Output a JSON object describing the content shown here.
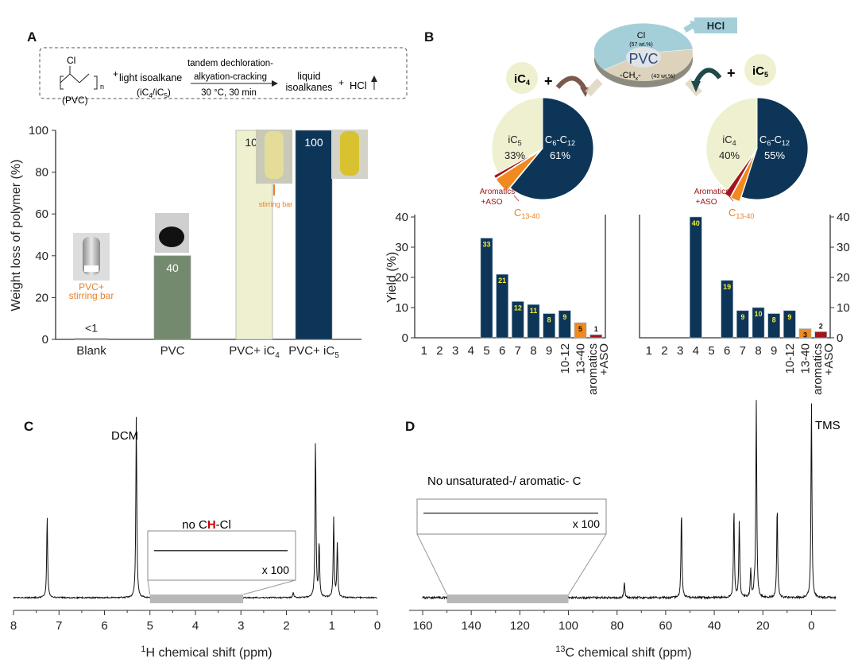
{
  "panels": {
    "a": "A",
    "b": "B",
    "c": "C",
    "d": "D"
  },
  "colors": {
    "navy": "#0d3557",
    "cream": "#eef0cf",
    "green": "#748a6e",
    "orange": "#f08a1e",
    "red": "#a3151b",
    "lightblue": "#a5cfd8",
    "beige": "#ddd3bd",
    "bar_label_yellow": "#f2ea3a"
  },
  "scheme": {
    "cl": "Cl",
    "n": "n",
    "pvc": "(PVC)",
    "plus": "+",
    "reactant": "light isoalkane",
    "reactant_sub": [
      "(iC",
      "4",
      "/iC",
      "5",
      ")"
    ],
    "arrow_top1": "tandem dechloration-",
    "arrow_top2": "alkyation-cracking",
    "arrow_bottom": "30 °C, 30 min",
    "product1": "liquid",
    "product2": "isoalkanes",
    "hcl": "HCl"
  },
  "panel_a_annotations": {
    "blank_vial": [
      "PVC+",
      "stirring bar"
    ],
    "ic4_vial": "stirring bar"
  },
  "panel_b_scheme": {
    "cl": "Cl",
    "cl_wt": "(57 wt.%)",
    "pvc": "PVC",
    "chx": "-CH",
    "chx_sub": "x",
    "chx_end": "-",
    "chx_wt": "(43 wt.%)",
    "hcl": "HCl",
    "ic4": [
      "iC",
      "4"
    ],
    "ic5": [
      "iC",
      "5"
    ],
    "plus": "+"
  },
  "chart_data": [
    {
      "type": "bar",
      "id": "weight-loss",
      "ylabel": "Weight loss of polymer (%)",
      "ylim": [
        0,
        100
      ],
      "yticks": [
        "0",
        "20",
        "40",
        "60",
        "80",
        "100"
      ],
      "categories": [
        [
          "Blank",
          ""
        ],
        [
          "PVC",
          ""
        ],
        [
          "PVC+ iC",
          "4"
        ],
        [
          "PVC+ iC",
          "5"
        ]
      ],
      "values": [
        0.5,
        40,
        100,
        100
      ],
      "value_labels": [
        "<1",
        "40",
        "100",
        "100"
      ],
      "colors": [
        "#9aa58f",
        "#748a6e",
        "#eef0cf",
        "#0d3557"
      ]
    },
    {
      "type": "bar",
      "id": "yield-ic4",
      "ylabel": "Yield (%)",
      "ylim": [
        0,
        40
      ],
      "yticks": [
        "0",
        "10",
        "20",
        "30",
        "40"
      ],
      "categories": [
        "1",
        "2",
        "3",
        "4",
        "5",
        "6",
        "7",
        "8",
        "9",
        "10-12",
        "13-40",
        "aromatics|+ASO"
      ],
      "values": [
        0,
        0,
        0,
        0,
        33,
        21,
        12,
        11,
        8,
        9,
        5,
        1
      ],
      "value_labels": [
        "",
        "",
        "",
        "",
        "33",
        "21",
        "12",
        "11",
        "8",
        "9",
        "5",
        "1"
      ]
    },
    {
      "type": "bar",
      "id": "yield-ic5",
      "ylabel": "Yield (%)",
      "ylim": [
        0,
        40
      ],
      "yticks": [
        "0",
        "10",
        "20",
        "30",
        "40"
      ],
      "categories": [
        "1",
        "2",
        "3",
        "4",
        "5",
        "6",
        "7",
        "8",
        "9",
        "10-12",
        "13-40",
        "aromatics|+ASO"
      ],
      "values": [
        0,
        0,
        0,
        40,
        0,
        19,
        9,
        10,
        8,
        9,
        3,
        2
      ],
      "value_labels": [
        "",
        "",
        "",
        "40",
        "",
        "19",
        "9",
        "10",
        "8",
        "9",
        "3",
        "2"
      ]
    },
    {
      "type": "pie",
      "id": "pie-ic4",
      "slices": [
        {
          "label": "C6-C12",
          "value": 61,
          "pct": "61%"
        },
        {
          "label": "C13-40",
          "value": 5,
          "pct": ""
        },
        {
          "label": "Aromatics +ASO",
          "value": 1,
          "pct": ""
        },
        {
          "label": "iC5",
          "value": 33,
          "pct": "33%"
        }
      ]
    },
    {
      "type": "pie",
      "id": "pie-ic5",
      "slices": [
        {
          "label": "C6-C12",
          "value": 55,
          "pct": "55%"
        },
        {
          "label": "C13-40",
          "value": 3,
          "pct": ""
        },
        {
          "label": "Aromatics +ASO",
          "value": 2,
          "pct": ""
        },
        {
          "label": "iC4",
          "value": 40,
          "pct": "40%"
        }
      ]
    },
    {
      "type": "line",
      "id": "nmr-1h",
      "xlabel": "H chemical shift (ppm)",
      "xlabel_sup": "1",
      "xlim": [
        8,
        0
      ],
      "xticks": [
        "8",
        "7",
        "6",
        "5",
        "4",
        "3",
        "2",
        "1",
        "0"
      ],
      "peaks": [
        {
          "ppm": 7.26,
          "h": 0.45
        },
        {
          "ppm": 5.3,
          "h": 1.0
        },
        {
          "ppm": 1.85,
          "h": 0.03
        },
        {
          "ppm": 1.36,
          "h": 0.87
        },
        {
          "ppm": 1.28,
          "h": 0.3
        },
        {
          "ppm": 0.96,
          "h": 0.44
        },
        {
          "ppm": 0.88,
          "h": 0.3
        }
      ],
      "annotations": {
        "dcm": "DCM",
        "no_chcl": [
          "no C",
          "H",
          "-Cl"
        ],
        "magnification": "x 100"
      }
    },
    {
      "type": "line",
      "id": "nmr-13c",
      "xlabel": "C chemical shift (ppm)",
      "xlabel_sup": "13",
      "xlim": [
        160,
        -10
      ],
      "xticks": [
        "160",
        "140",
        "120",
        "100",
        "80",
        "60",
        "40",
        "20",
        "0"
      ],
      "peaks": [
        {
          "ppm": 77,
          "h": 0.08
        },
        {
          "ppm": 53.5,
          "h": 0.45
        },
        {
          "ppm": 31.9,
          "h": 0.45
        },
        {
          "ppm": 29.7,
          "h": 0.39
        },
        {
          "ppm": 25.0,
          "h": 0.14
        },
        {
          "ppm": 23.5,
          "h": 0.05
        },
        {
          "ppm": 22.7,
          "h": 1.0
        },
        {
          "ppm": 14.1,
          "h": 0.47
        },
        {
          "ppm": 0,
          "h": 1.0
        }
      ],
      "annotations": {
        "tms": "TMS",
        "no_unsat": "No unsaturated-/ aromatic- C",
        "magnification": "x 100"
      }
    }
  ]
}
